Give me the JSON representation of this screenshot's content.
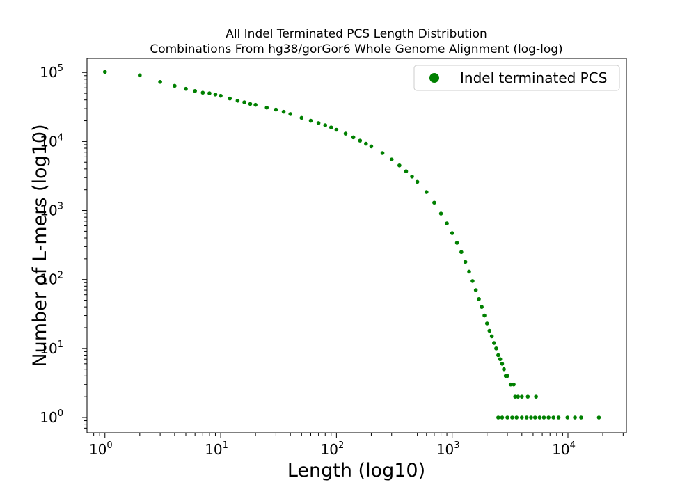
{
  "chart_data": {
    "type": "scatter",
    "title_lines": [
      "All Indel Terminated PCS Length Distribution",
      "Combinations From hg38/gorGor6 Whole Genome Alignment (log-log)"
    ],
    "xlabel": "Length (log10)",
    "ylabel": "Number of L-mers (log10)",
    "x_scale": "log",
    "y_scale": "log",
    "xlim": [
      0.7,
      32000
    ],
    "ylim": [
      0.6,
      160000
    ],
    "grid": false,
    "legend_position": "top-right",
    "x_ticks": [
      {
        "base": "10",
        "exp": "0",
        "value": 1
      },
      {
        "base": "10",
        "exp": "1",
        "value": 10
      },
      {
        "base": "10",
        "exp": "2",
        "value": 100
      },
      {
        "base": "10",
        "exp": "3",
        "value": 1000
      },
      {
        "base": "10",
        "exp": "4",
        "value": 10000
      }
    ],
    "y_ticks": [
      {
        "base": "10",
        "exp": "0",
        "value": 1
      },
      {
        "base": "10",
        "exp": "1",
        "value": 10
      },
      {
        "base": "10",
        "exp": "2",
        "value": 100
      },
      {
        "base": "10",
        "exp": "3",
        "value": 1000
      },
      {
        "base": "10",
        "exp": "4",
        "value": 10000
      },
      {
        "base": "10",
        "exp": "5",
        "value": 100000
      }
    ],
    "series": [
      {
        "name": "Indel terminated PCS",
        "color": "#008000",
        "points": [
          [
            1,
            102000
          ],
          [
            2,
            91000
          ],
          [
            3,
            73000
          ],
          [
            4,
            64000
          ],
          [
            5,
            58000
          ],
          [
            6,
            54000
          ],
          [
            7,
            51000
          ],
          [
            8,
            50000
          ],
          [
            9,
            48000
          ],
          [
            10,
            46000
          ],
          [
            12,
            42000
          ],
          [
            14,
            39000
          ],
          [
            16,
            37000
          ],
          [
            18,
            35000
          ],
          [
            20,
            34000
          ],
          [
            25,
            31000
          ],
          [
            30,
            29000
          ],
          [
            35,
            27000
          ],
          [
            40,
            25000
          ],
          [
            50,
            22000
          ],
          [
            60,
            20000
          ],
          [
            70,
            18500
          ],
          [
            80,
            17200
          ],
          [
            90,
            16000
          ],
          [
            100,
            14800
          ],
          [
            120,
            13000
          ],
          [
            140,
            11500
          ],
          [
            160,
            10300
          ],
          [
            180,
            9300
          ],
          [
            200,
            8500
          ],
          [
            250,
            6800
          ],
          [
            300,
            5500
          ],
          [
            350,
            4500
          ],
          [
            400,
            3700
          ],
          [
            450,
            3100
          ],
          [
            500,
            2600
          ],
          [
            600,
            1850
          ],
          [
            700,
            1300
          ],
          [
            800,
            900
          ],
          [
            900,
            650
          ],
          [
            1000,
            470
          ],
          [
            1100,
            340
          ],
          [
            1200,
            250
          ],
          [
            1300,
            180
          ],
          [
            1400,
            130
          ],
          [
            1500,
            95
          ],
          [
            1600,
            70
          ],
          [
            1700,
            52
          ],
          [
            1800,
            40
          ],
          [
            1900,
            30
          ],
          [
            2000,
            23
          ],
          [
            2100,
            18
          ],
          [
            2200,
            15
          ],
          [
            2300,
            12
          ],
          [
            2400,
            10
          ],
          [
            2500,
            8
          ],
          [
            2600,
            7
          ],
          [
            2700,
            6
          ],
          [
            2800,
            5
          ],
          [
            2900,
            4
          ],
          [
            3000,
            4
          ],
          [
            3200,
            3
          ],
          [
            3400,
            3
          ],
          [
            3500,
            2
          ],
          [
            3700,
            2
          ],
          [
            4000,
            2
          ],
          [
            4500,
            2
          ],
          [
            5300,
            2
          ],
          [
            2500,
            1
          ],
          [
            2700,
            1
          ],
          [
            3000,
            1
          ],
          [
            3300,
            1
          ],
          [
            3600,
            1
          ],
          [
            4000,
            1
          ],
          [
            4400,
            1
          ],
          [
            4800,
            1
          ],
          [
            5200,
            1
          ],
          [
            5700,
            1
          ],
          [
            6200,
            1
          ],
          [
            6800,
            1
          ],
          [
            7500,
            1
          ],
          [
            8300,
            1
          ],
          [
            9900,
            1
          ],
          [
            11500,
            1
          ],
          [
            13000,
            1
          ],
          [
            18500,
            1
          ]
        ]
      }
    ]
  }
}
